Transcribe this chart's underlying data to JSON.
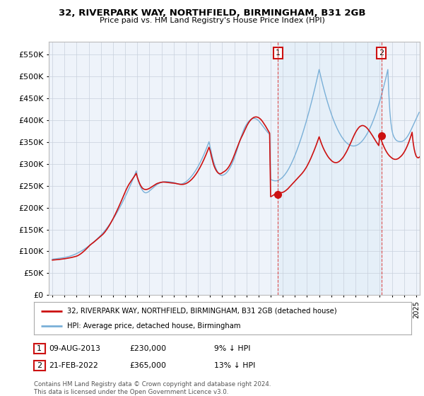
{
  "title": "32, RIVERPARK WAY, NORTHFIELD, BIRMINGHAM, B31 2GB",
  "subtitle": "Price paid vs. HM Land Registry's House Price Index (HPI)",
  "ytick_values": [
    0,
    50000,
    100000,
    150000,
    200000,
    250000,
    300000,
    350000,
    400000,
    450000,
    500000,
    550000
  ],
  "ylim": [
    0,
    580000
  ],
  "xlim_start": 1994.7,
  "xlim_end": 2025.3,
  "hpi_color": "#7ab0d8",
  "hpi_fill_color": "#d6e8f5",
  "price_color": "#cc1111",
  "marker_color": "#cc1111",
  "background_color": "#eef3fa",
  "shaded_region_color": "#ddeeff",
  "grid_color": "#c8d0dc",
  "transaction1": {
    "date": "09-AUG-2013",
    "price": 230000,
    "pct": "9%",
    "label": "1",
    "year": 2013.6
  },
  "transaction2": {
    "date": "21-FEB-2022",
    "price": 365000,
    "pct": "13%",
    "label": "2",
    "year": 2022.13
  },
  "vline_color": "#dd3333",
  "legend_label1": "32, RIVERPARK WAY, NORTHFIELD, BIRMINGHAM, B31 2GB (detached house)",
  "legend_label2": "HPI: Average price, detached house, Birmingham",
  "footer": "Contains HM Land Registry data © Crown copyright and database right 2024.\nThis data is licensed under the Open Government Licence v3.0.",
  "hpi_data_monthly": [
    82000,
    82300,
    82600,
    82900,
    83200,
    83500,
    83800,
    84100,
    84400,
    84700,
    85000,
    85400,
    85800,
    86300,
    86800,
    87400,
    88000,
    88700,
    89400,
    90200,
    91000,
    91900,
    92800,
    93800,
    94900,
    96000,
    97200,
    98500,
    99800,
    101200,
    102600,
    104100,
    105600,
    107200,
    108800,
    110500,
    112200,
    114000,
    115800,
    117700,
    119600,
    121600,
    123600,
    125700,
    127800,
    130000,
    132200,
    134500,
    136900,
    139400,
    142000,
    144700,
    147500,
    150400,
    153400,
    156500,
    159700,
    163000,
    166400,
    169900,
    173500,
    177200,
    181000,
    184900,
    188900,
    193000,
    197200,
    201500,
    205900,
    210400,
    215000,
    219700,
    224500,
    229400,
    234400,
    239500,
    244700,
    250000,
    255400,
    260900,
    266500,
    272200,
    278000,
    284000,
    270000,
    262000,
    255000,
    249000,
    244000,
    240000,
    237000,
    235000,
    234000,
    234000,
    235000,
    236000,
    238000,
    240000,
    242000,
    244000,
    246000,
    248000,
    250000,
    252000,
    253500,
    254800,
    256000,
    257000,
    257800,
    258500,
    259000,
    259300,
    259500,
    259600,
    259500,
    259300,
    259000,
    258700,
    258400,
    258000,
    257500,
    256800,
    256000,
    255200,
    254500,
    254000,
    253800,
    253900,
    254300,
    255000,
    256000,
    257300,
    258800,
    260600,
    262600,
    264800,
    267200,
    269800,
    272600,
    275600,
    278800,
    282200,
    285800,
    289600,
    293600,
    297800,
    302200,
    306800,
    311600,
    316600,
    321800,
    327200,
    332800,
    338600,
    344600,
    350800,
    340000,
    329000,
    319000,
    310000,
    302000,
    295000,
    289000,
    284000,
    280000,
    277000,
    275000,
    274000,
    274000,
    274500,
    275500,
    277000,
    279000,
    281500,
    284500,
    288000,
    292000,
    296500,
    301500,
    307000,
    313000,
    319500,
    326500,
    334000,
    341500,
    349000,
    356500,
    363500,
    370000,
    376000,
    381500,
    386000,
    390000,
    393500,
    396500,
    399000,
    401000,
    402500,
    403500,
    404000,
    404000,
    403500,
    402500,
    401000,
    399000,
    396500,
    393500,
    390500,
    387500,
    384500,
    381500,
    378500,
    375500,
    372500,
    370000,
    367500,
    265000,
    263500,
    262500,
    261800,
    261400,
    261300,
    261500,
    262000,
    263000,
    264300,
    265900,
    267800,
    270000,
    272500,
    275300,
    278400,
    281800,
    285500,
    289500,
    293800,
    298400,
    303200,
    308300,
    313700,
    319300,
    325200,
    331300,
    337600,
    344100,
    350800,
    357700,
    364800,
    372100,
    379600,
    387300,
    395200,
    403300,
    411600,
    420100,
    428800,
    437700,
    446800,
    456100,
    465600,
    475300,
    485200,
    495300,
    505600,
    516100,
    506000,
    496200,
    486700,
    477500,
    468600,
    460000,
    451700,
    443700,
    436000,
    428600,
    421500,
    414700,
    408200,
    402000,
    396100,
    390500,
    385200,
    380200,
    375500,
    371100,
    367000,
    363200,
    359700,
    356500,
    353600,
    351000,
    348700,
    346700,
    345000,
    343600,
    342500,
    341700,
    341200,
    341000,
    341200,
    341700,
    342500,
    343600,
    345000,
    346700,
    348700,
    351000,
    353600,
    356500,
    359700,
    363200,
    367000,
    371100,
    375500,
    380200,
    385200,
    390500,
    396100,
    402000,
    408200,
    414700,
    421500,
    428600,
    436000,
    443700,
    451700,
    460000,
    468600,
    477500,
    486700,
    496200,
    506000,
    516100,
    460000,
    420000,
    395000,
    378000,
    368000,
    362000,
    358000,
    355000,
    353000,
    352000,
    351500,
    351000,
    351000,
    351500,
    352500,
    354000,
    356000,
    358500,
    361500,
    365000,
    369000,
    373500,
    378000,
    383000,
    388000,
    393000,
    398000,
    403000,
    408000,
    413000,
    418000
  ],
  "price_data_monthly": [
    80000,
    80200,
    80400,
    80600,
    80800,
    81000,
    81200,
    81500,
    81800,
    82100,
    82400,
    82700,
    83000,
    83400,
    83800,
    84200,
    84600,
    85000,
    85500,
    86000,
    86500,
    87100,
    87700,
    88300,
    89000,
    90000,
    91200,
    92600,
    94200,
    96000,
    97900,
    99900,
    102000,
    104200,
    106500,
    108900,
    111400,
    113700,
    115700,
    117500,
    119200,
    121000,
    122900,
    124900,
    126900,
    128900,
    130900,
    132900,
    134800,
    136800,
    139000,
    141500,
    144300,
    147400,
    150700,
    154200,
    157900,
    161800,
    165900,
    170100,
    174500,
    179000,
    183700,
    188500,
    193400,
    198400,
    203500,
    208700,
    214000,
    219400,
    224800,
    230300,
    235800,
    241000,
    245800,
    250200,
    254200,
    257800,
    261200,
    264500,
    267900,
    271300,
    274800,
    278300,
    270000,
    263000,
    257000,
    252000,
    248000,
    245000,
    243000,
    242000,
    241500,
    241500,
    242000,
    243000,
    244000,
    245500,
    247000,
    248500,
    250000,
    251500,
    253000,
    254500,
    255500,
    256300,
    257000,
    257700,
    258100,
    258400,
    258500,
    258400,
    258200,
    257900,
    257600,
    257300,
    257000,
    256700,
    256500,
    256300,
    256100,
    255800,
    255400,
    254900,
    254400,
    253900,
    253500,
    253200,
    253100,
    253200,
    253500,
    254100,
    254900,
    256000,
    257300,
    258900,
    260700,
    262700,
    264900,
    267400,
    270100,
    273100,
    276300,
    279800,
    283500,
    287400,
    291500,
    295900,
    300500,
    305300,
    310300,
    315500,
    320900,
    326500,
    332300,
    338300,
    331000,
    322000,
    312000,
    303000,
    295500,
    290000,
    285500,
    282000,
    279500,
    278000,
    277500,
    278000,
    279500,
    281000,
    282500,
    284000,
    286000,
    288500,
    291500,
    295000,
    299000,
    303500,
    308500,
    314000,
    320000,
    326000,
    332000,
    338000,
    344000,
    350000,
    355500,
    360500,
    365000,
    370000,
    375000,
    380000,
    385000,
    389500,
    393500,
    397000,
    400000,
    402500,
    404500,
    406000,
    407000,
    407500,
    407500,
    407000,
    406000,
    404500,
    402500,
    400000,
    397000,
    393500,
    390000,
    386500,
    382500,
    378500,
    374500,
    370500,
    225000,
    226000,
    227500,
    229000,
    230500,
    231500,
    232000,
    232500,
    233000,
    233500,
    234000,
    234500,
    235000,
    236000,
    237500,
    239000,
    241000,
    243000,
    245500,
    248000,
    250500,
    253000,
    255500,
    258000,
    260500,
    263000,
    265500,
    268000,
    270500,
    273000,
    275500,
    278000,
    281000,
    284000,
    287500,
    291000,
    295000,
    299500,
    304000,
    309000,
    314000,
    319500,
    325000,
    330500,
    336500,
    342500,
    349000,
    355500,
    362000,
    355000,
    348500,
    342500,
    337000,
    332000,
    327500,
    323500,
    319500,
    316000,
    313000,
    310500,
    308000,
    306000,
    304500,
    303500,
    303000,
    303000,
    303500,
    304500,
    306000,
    308000,
    310500,
    313000,
    316000,
    319500,
    323500,
    327500,
    332000,
    337000,
    342000,
    347000,
    352000,
    357500,
    362500,
    367500,
    372000,
    376000,
    379500,
    382500,
    385000,
    386500,
    387500,
    388000,
    387500,
    386500,
    385000,
    383000,
    380500,
    377500,
    374500,
    371000,
    367500,
    364000,
    360000,
    356500,
    352500,
    349000,
    345500,
    342000,
    365000,
    358000,
    351500,
    345500,
    340000,
    335000,
    330500,
    326500,
    323000,
    320000,
    317500,
    315500,
    313500,
    312000,
    311000,
    310500,
    310500,
    311000,
    312000,
    313500,
    315500,
    317500,
    320000,
    323000,
    326500,
    330500,
    335000,
    340000,
    345500,
    351500,
    358000,
    365000,
    372500,
    350000,
    335000,
    325000,
    318000,
    315000,
    314000,
    315000,
    317000,
    320000,
    324000,
    328000,
    333000,
    339000
  ]
}
